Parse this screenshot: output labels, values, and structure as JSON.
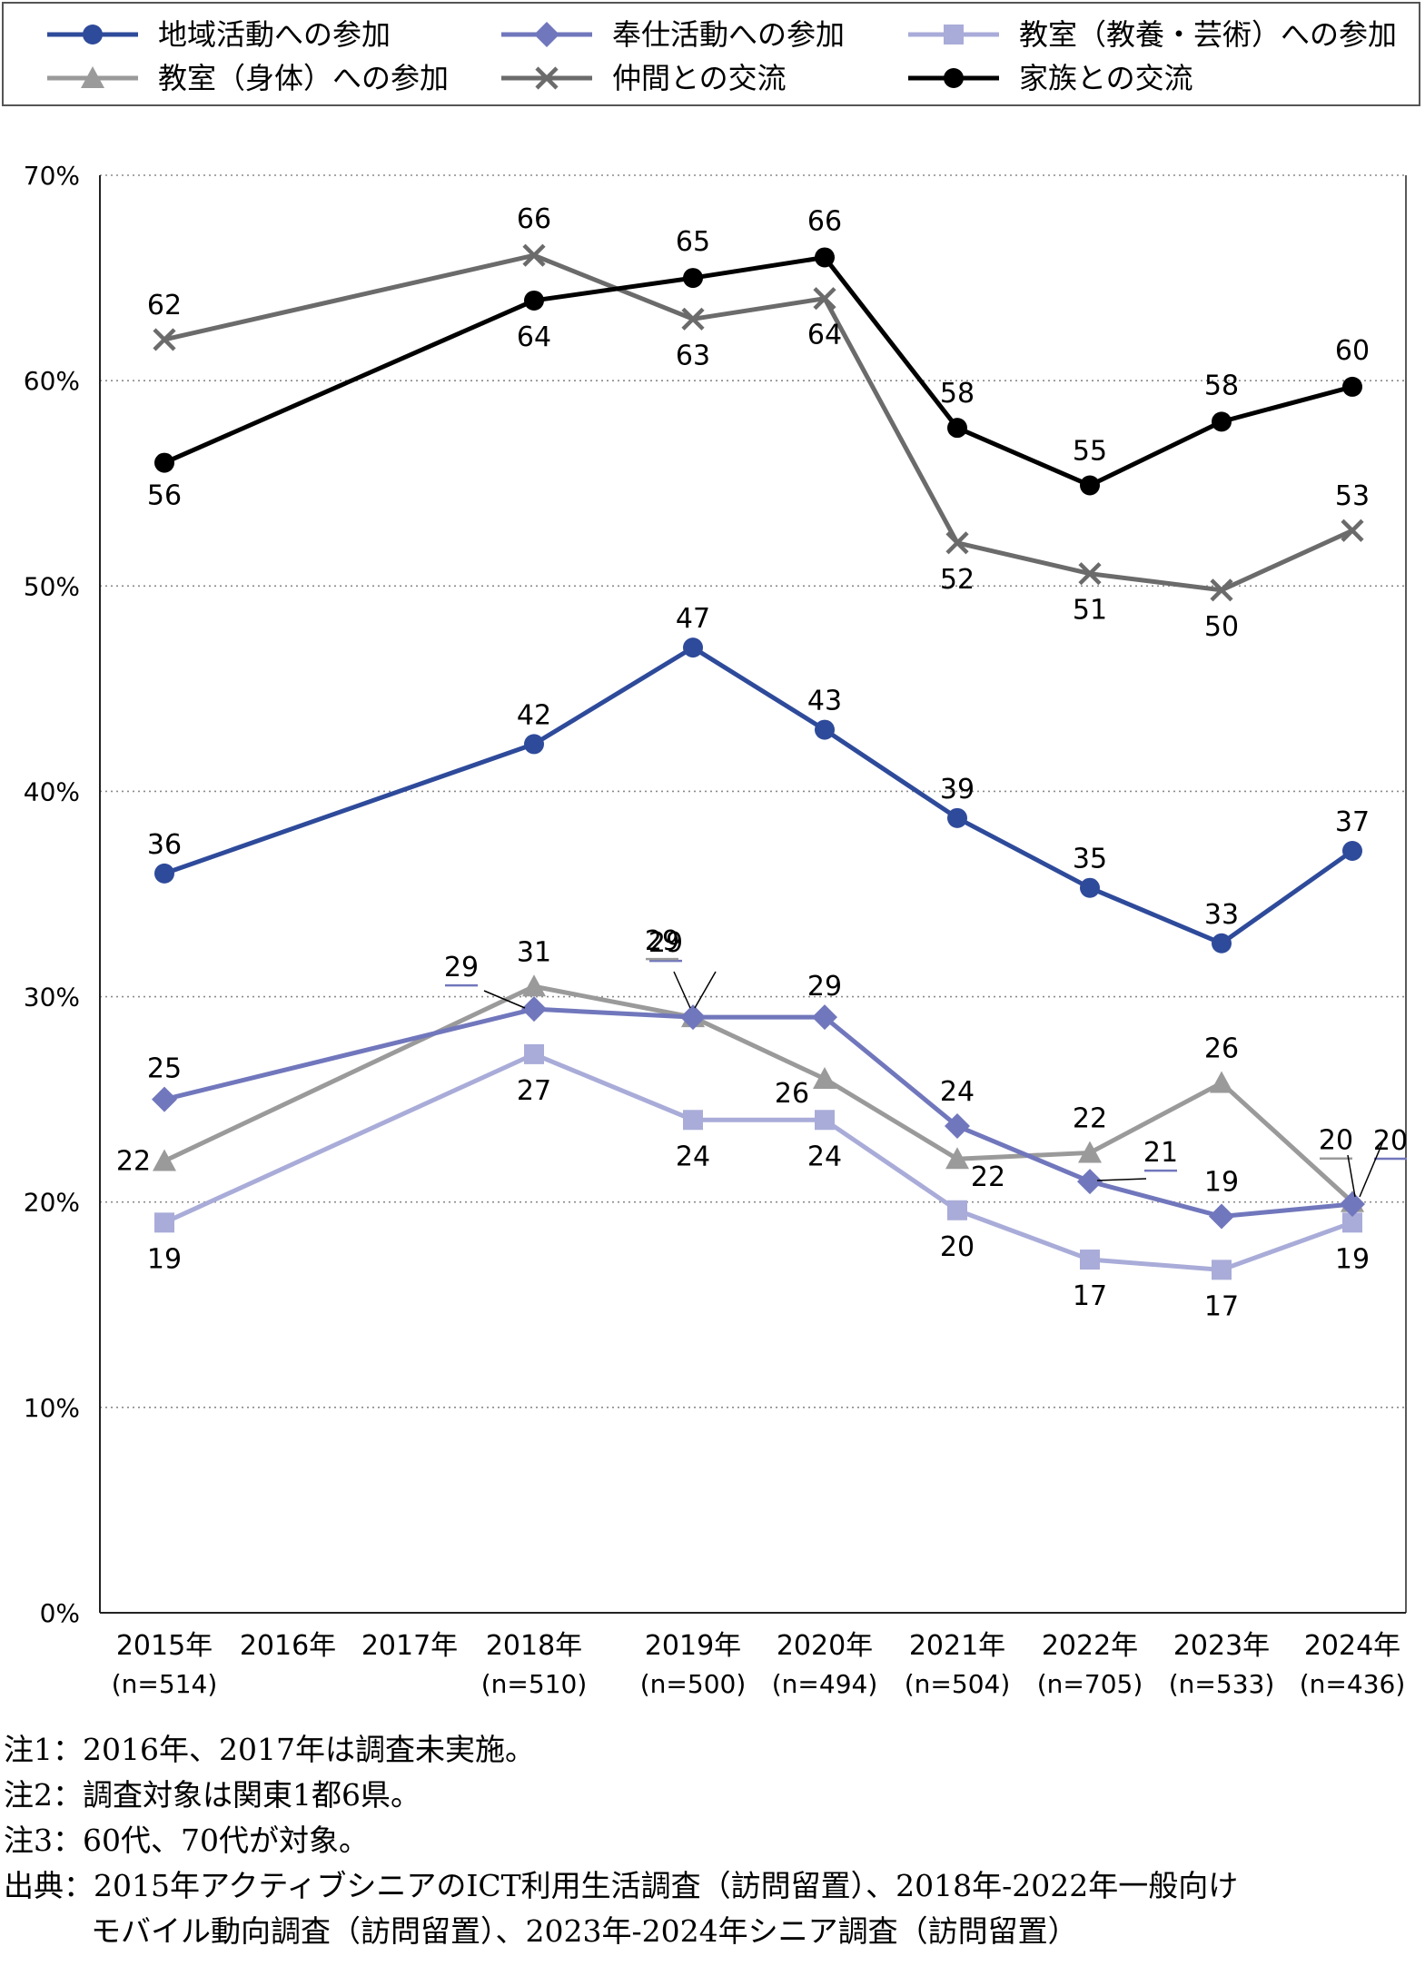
{
  "chart_data": {
    "type": "line",
    "categories": [
      "2015年",
      "2016年",
      "2017年",
      "2018年",
      "2019年",
      "2020年",
      "2021年",
      "2022年",
      "2023年",
      "2024年"
    ],
    "category_sublabels": [
      "(n=514)",
      "",
      "",
      "(n=510)",
      "(n=500)",
      "(n=494)",
      "(n=504)",
      "(n=705)",
      "(n=533)",
      "(n=436)"
    ],
    "y_ticks": [
      "0%",
      "10%",
      "20%",
      "30%",
      "40%",
      "50%",
      "60%",
      "70%"
    ],
    "ylim": [
      0,
      70
    ],
    "grid": "horizontal dotted",
    "legend_position": "top",
    "series": [
      {
        "name": "地域活動への参加",
        "color": "#2e4a9a",
        "marker": "circle",
        "values": [
          36,
          null,
          null,
          42.3,
          47,
          43,
          38.7,
          35.3,
          32.6,
          37.1
        ],
        "labels": [
          "36",
          "",
          "",
          "42",
          "47",
          "43",
          "39",
          "35",
          "33",
          "37"
        ]
      },
      {
        "name": "奉仕活動への参加",
        "color": "#7177bc",
        "marker": "diamond",
        "values": [
          25,
          null,
          null,
          29.4,
          29,
          29,
          23.7,
          21,
          19.3,
          19.9
        ],
        "labels": [
          "25",
          "",
          "",
          "29",
          "29",
          "29",
          "24",
          "21",
          "19",
          "20"
        ]
      },
      {
        "name": "教室（教養・芸術）への参加",
        "color": "#a9acd8",
        "marker": "square",
        "values": [
          19,
          null,
          null,
          27.2,
          24,
          24,
          19.6,
          17.2,
          16.7,
          19
        ],
        "labels": [
          "19",
          "",
          "",
          "27",
          "24",
          "24",
          "20",
          "17",
          "17",
          "19"
        ]
      },
      {
        "name": "教室（身体）への参加",
        "color": "#9a9a9a",
        "marker": "triangle",
        "values": [
          22,
          null,
          null,
          30.5,
          29,
          26,
          22.1,
          22.4,
          25.8,
          20
        ],
        "labels": [
          "22",
          "",
          "",
          "31",
          "29",
          "26",
          "22",
          "22",
          "26",
          "20"
        ]
      },
      {
        "name": "仲間との交流",
        "color": "#6b6b6b",
        "marker": "x",
        "values": [
          62,
          null,
          null,
          66.1,
          63,
          64,
          52.1,
          50.6,
          49.8,
          52.7
        ],
        "labels": [
          "62",
          "",
          "",
          "66",
          "63",
          "64",
          "52",
          "51",
          "50",
          "53"
        ]
      },
      {
        "name": "家族との交流",
        "color": "#000000",
        "marker": "circle",
        "values": [
          56,
          null,
          null,
          63.9,
          65,
          66,
          57.7,
          54.9,
          58,
          59.7
        ],
        "labels": [
          "56",
          "",
          "",
          "64",
          "65",
          "66",
          "58",
          "55",
          "58",
          "60"
        ]
      }
    ]
  },
  "notes": [
    "注1：2016年、2017年は調査未実施。",
    "注2：調査対象は関東1都6県。",
    "注3：60代、70代が対象。",
    "出典：2015年アクティブシニアのICT利用生活調査（訪問留置）、2018年-2022年一般向け",
    "モバイル動向調査（訪問留置）、2023年-2024年シニア調査（訪問留置）"
  ]
}
